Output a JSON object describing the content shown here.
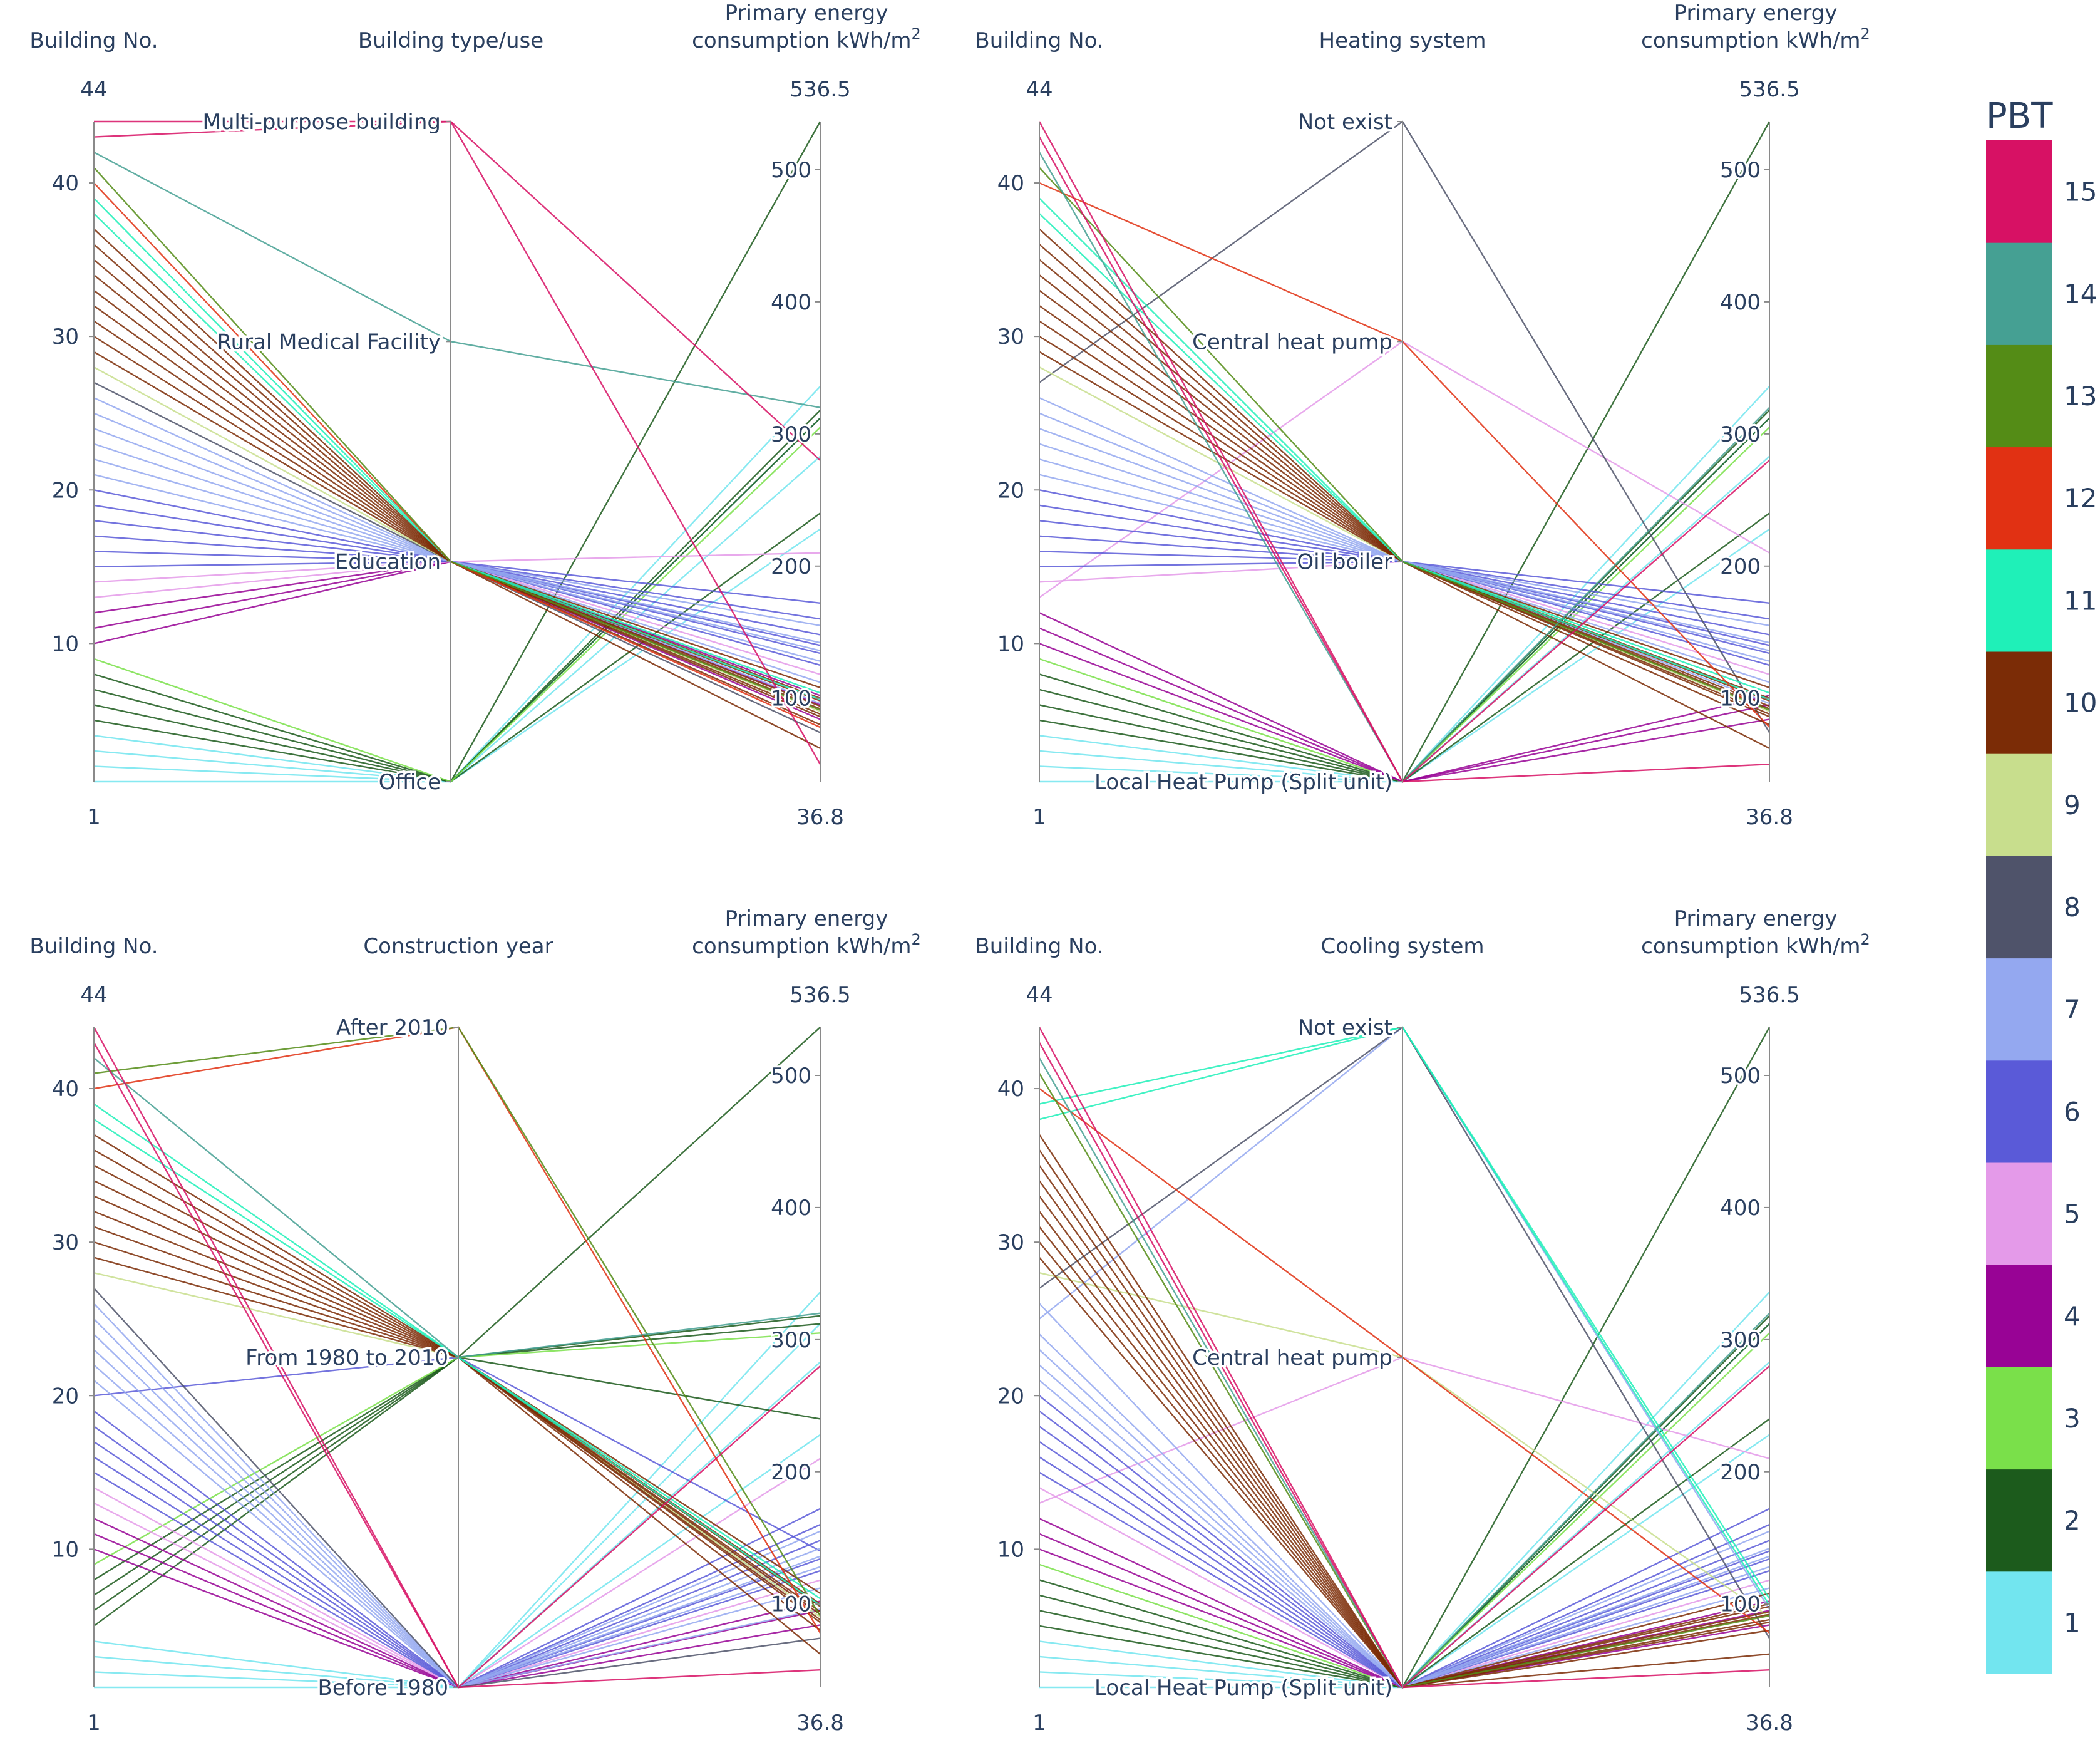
{
  "chart_data": [
    {
      "type": "parallel_coordinates",
      "axes": [
        {
          "name": "Building No.",
          "range": [
            1,
            44
          ]
        },
        {
          "name": "Building type/use",
          "categories": [
            "Office",
            "Education",
            "Rural Medical Facility",
            "Multi-purpose building"
          ]
        },
        {
          "name": "Primary energy consumption kWh/m²",
          "range": [
            36.8,
            536.5
          ],
          "ticks": [
            100,
            200,
            300,
            400,
            500
          ]
        }
      ]
    },
    {
      "type": "parallel_coordinates",
      "axes": [
        {
          "name": "Building No.",
          "range": [
            1,
            44
          ]
        },
        {
          "name": "Heating system",
          "categories": [
            "Local Heat Pump (Split unit)",
            "Oil boiler",
            "Central heat pump",
            "Not exist"
          ]
        },
        {
          "name": "Primary energy consumption kWh/m²",
          "range": [
            36.8,
            536.5
          ],
          "ticks": [
            100,
            200,
            300,
            400,
            500
          ]
        }
      ]
    },
    {
      "type": "parallel_coordinates",
      "axes": [
        {
          "name": "Building No.",
          "range": [
            1,
            44
          ]
        },
        {
          "name": "Construction year",
          "categories": [
            "Before 1980",
            "From 1980 to 2010",
            "After 2010"
          ]
        },
        {
          "name": "Primary energy consumption kWh/m²",
          "range": [
            36.8,
            536.5
          ],
          "ticks": [
            100,
            200,
            300,
            400,
            500
          ]
        }
      ]
    },
    {
      "type": "parallel_coordinates",
      "axes": [
        {
          "name": "Building No.",
          "range": [
            1,
            44
          ]
        },
        {
          "name": "Cooling system",
          "categories": [
            "Local Heat Pump (Split unit)",
            "Central heat pump",
            "Not exist"
          ]
        },
        {
          "name": "Primary energy consumption kWh/m²",
          "range": [
            36.8,
            536.5
          ],
          "ticks": [
            100,
            200,
            300,
            400,
            500
          ]
        }
      ]
    }
  ],
  "labels": {
    "building_no": "Building No.",
    "energy_line1": "Primary energy",
    "energy_line2": "consumption kWh/m",
    "energy_sup": "2",
    "panels": [
      "Building type/use",
      "Heating system",
      "Construction year",
      "Cooling system"
    ],
    "range_top_left": "44",
    "range_bottom_left": "1",
    "range_top_right": "536.5",
    "range_bottom_right": "36.8",
    "left_ticks": [
      "10",
      "20",
      "30",
      "40"
    ],
    "right_ticks": [
      "100",
      "200",
      "300",
      "400",
      "500"
    ]
  },
  "colorbar": {
    "title": "PBT",
    "ticks": [
      "1",
      "2",
      "3",
      "4",
      "5",
      "6",
      "7",
      "8",
      "9",
      "10",
      "11",
      "12",
      "13",
      "14",
      "15"
    ],
    "colors": [
      "#72e5ef",
      "#1c5b1c",
      "#7ae04a",
      "#980395",
      "#e49ae9",
      "#5a5ad8",
      "#94a8f0",
      "#4f536a",
      "#c8de8d",
      "#7b2c06",
      "#1ff0b8",
      "#e13113",
      "#548c16",
      "#45a093",
      "#d71164"
    ]
  },
  "buildings": [
    {
      "id": 1,
      "pbt": 1,
      "use": "Office",
      "heating": "Local Heat Pump (Split unit)",
      "year": "Before 1980",
      "cooling": "Local Heat Pump (Split unit)",
      "energy": 228
    },
    {
      "id": 2,
      "pbt": 1,
      "use": "Office",
      "heating": "Local Heat Pump (Split unit)",
      "year": "Before 1980",
      "cooling": "Local Heat Pump (Split unit)",
      "energy": 312
    },
    {
      "id": 3,
      "pbt": 1,
      "use": "Office",
      "heating": "Local Heat Pump (Split unit)",
      "year": "Before 1980",
      "cooling": "Local Heat Pump (Split unit)",
      "energy": 336
    },
    {
      "id": 4,
      "pbt": 1,
      "use": "Office",
      "heating": "Local Heat Pump (Split unit)",
      "year": "Before 1980",
      "cooling": "Local Heat Pump (Split unit)",
      "energy": 283
    },
    {
      "id": 5,
      "pbt": 2,
      "use": "Office",
      "heating": "Local Heat Pump (Split unit)",
      "year": "From 1980 to 2010",
      "cooling": "Local Heat Pump (Split unit)",
      "energy": 536.5
    },
    {
      "id": 6,
      "pbt": 2,
      "use": "Office",
      "heating": "Local Heat Pump (Split unit)",
      "year": "From 1980 to 2010",
      "cooling": "Local Heat Pump (Split unit)",
      "energy": 312
    },
    {
      "id": 7,
      "pbt": 2,
      "use": "Office",
      "heating": "Local Heat Pump (Split unit)",
      "year": "From 1980 to 2010",
      "cooling": "Local Heat Pump (Split unit)",
      "energy": 240
    },
    {
      "id": 8,
      "pbt": 2,
      "use": "Office",
      "heating": "Local Heat Pump (Split unit)",
      "year": "From 1980 to 2010",
      "cooling": "Local Heat Pump (Split unit)",
      "energy": 318
    },
    {
      "id": 9,
      "pbt": 3,
      "use": "Office",
      "heating": "Local Heat Pump (Split unit)",
      "year": "From 1980 to 2010",
      "cooling": "Local Heat Pump (Split unit)",
      "energy": 305
    },
    {
      "id": 10,
      "pbt": 4,
      "use": "Education",
      "heating": "Local Heat Pump (Split unit)",
      "year": "Before 1980",
      "cooling": "Local Heat Pump (Split unit)",
      "energy": 84
    },
    {
      "id": 11,
      "pbt": 4,
      "use": "Education",
      "heating": "Local Heat Pump (Split unit)",
      "year": "Before 1980",
      "cooling": "Local Heat Pump (Split unit)",
      "energy": 95
    },
    {
      "id": 12,
      "pbt": 4,
      "use": "Education",
      "heating": "Local Heat Pump (Split unit)",
      "year": "Before 1980",
      "cooling": "Local Heat Pump (Split unit)",
      "energy": 102
    },
    {
      "id": 13,
      "pbt": 5,
      "use": "Education",
      "heating": "Central heat pump",
      "year": "Before 1980",
      "cooling": "Central heat pump",
      "energy": 210
    },
    {
      "id": 14,
      "pbt": 5,
      "use": "Education",
      "heating": "Oil boiler",
      "year": "Before 1980",
      "cooling": "Local Heat Pump (Split unit)",
      "energy": 118
    },
    {
      "id": 15,
      "pbt": 6,
      "use": "Education",
      "heating": "Oil boiler",
      "year": "Before 1980",
      "cooling": "Local Heat Pump (Split unit)",
      "energy": 134
    },
    {
      "id": 16,
      "pbt": 6,
      "use": "Education",
      "heating": "Oil boiler",
      "year": "Before 1980",
      "cooling": "Local Heat Pump (Split unit)",
      "energy": 172
    },
    {
      "id": 17,
      "pbt": 6,
      "use": "Education",
      "heating": "Oil boiler",
      "year": "Before 1980",
      "cooling": "Local Heat Pump (Split unit)",
      "energy": 148
    },
    {
      "id": 18,
      "pbt": 6,
      "use": "Education",
      "heating": "Oil boiler",
      "year": "Before 1980",
      "cooling": "Local Heat Pump (Split unit)",
      "energy": 160
    },
    {
      "id": 19,
      "pbt": 6,
      "use": "Education",
      "heating": "Oil boiler",
      "year": "Before 1980",
      "cooling": "Local Heat Pump (Split unit)",
      "energy": 125
    },
    {
      "id": 20,
      "pbt": 6,
      "use": "Education",
      "heating": "Oil boiler",
      "year": "From 1980 to 2010",
      "cooling": "Local Heat Pump (Split unit)",
      "energy": 140
    },
    {
      "id": 21,
      "pbt": 7,
      "use": "Education",
      "heating": "Oil boiler",
      "year": "Before 1980",
      "cooling": "Local Heat Pump (Split unit)",
      "energy": 142
    },
    {
      "id": 22,
      "pbt": 7,
      "use": "Education",
      "heating": "Oil boiler",
      "year": "Before 1980",
      "cooling": "Local Heat Pump (Split unit)",
      "energy": 112
    },
    {
      "id": 23,
      "pbt": 7,
      "use": "Education",
      "heating": "Oil boiler",
      "year": "Before 1980",
      "cooling": "Local Heat Pump (Split unit)",
      "energy": 128
    },
    {
      "id": 24,
      "pbt": 7,
      "use": "Education",
      "heating": "Oil boiler",
      "year": "Before 1980",
      "cooling": "Local Heat Pump (Split unit)",
      "energy": 136
    },
    {
      "id": 25,
      "pbt": 7,
      "use": "Education",
      "heating": "Oil boiler",
      "year": "Before 1980",
      "cooling": "Not exist",
      "energy": 96
    },
    {
      "id": 26,
      "pbt": 7,
      "use": "Education",
      "heating": "Oil boiler",
      "year": "Before 1980",
      "cooling": "Local Heat Pump (Split unit)",
      "energy": 155
    },
    {
      "id": 27,
      "pbt": 8,
      "use": "Education",
      "heating": "Not exist",
      "year": "Before 1980",
      "cooling": "Not exist",
      "energy": 74
    },
    {
      "id": 28,
      "pbt": 9,
      "use": "Education",
      "heating": "Oil boiler",
      "year": "From 1980 to 2010",
      "cooling": "Central heat pump",
      "energy": 90
    },
    {
      "id": 29,
      "pbt": 10,
      "use": "Education",
      "heating": "Oil boiler",
      "year": "From 1980 to 2010",
      "cooling": "Local Heat Pump (Split unit)",
      "energy": 88
    },
    {
      "id": 30,
      "pbt": 10,
      "use": "Education",
      "heating": "Oil boiler",
      "year": "From 1980 to 2010",
      "cooling": "Local Heat Pump (Split unit)",
      "energy": 92
    },
    {
      "id": 31,
      "pbt": 10,
      "use": "Education",
      "heating": "Oil boiler",
      "year": "From 1980 to 2010",
      "cooling": "Local Heat Pump (Split unit)",
      "energy": 98
    },
    {
      "id": 32,
      "pbt": 10,
      "use": "Education",
      "heating": "Oil boiler",
      "year": "From 1980 to 2010",
      "cooling": "Local Heat Pump (Split unit)",
      "energy": 86
    },
    {
      "id": 33,
      "pbt": 10,
      "use": "Education",
      "heating": "Oil boiler",
      "year": "From 1980 to 2010",
      "cooling": "Local Heat Pump (Split unit)",
      "energy": 94
    },
    {
      "id": 34,
      "pbt": 10,
      "use": "Education",
      "heating": "Oil boiler",
      "year": "From 1980 to 2010",
      "cooling": "Local Heat Pump (Split unit)",
      "energy": 100
    },
    {
      "id": 35,
      "pbt": 10,
      "use": "Education",
      "heating": "Oil boiler",
      "year": "From 1980 to 2010",
      "cooling": "Local Heat Pump (Split unit)",
      "energy": 80
    },
    {
      "id": 36,
      "pbt": 10,
      "use": "Education",
      "heating": "Oil boiler",
      "year": "From 1980 to 2010",
      "cooling": "Local Heat Pump (Split unit)",
      "energy": 108
    },
    {
      "id": 37,
      "pbt": 10,
      "use": "Education",
      "heating": "Oil boiler",
      "year": "From 1980 to 2010",
      "cooling": "Local Heat Pump (Split unit)",
      "energy": 62
    },
    {
      "id": 38,
      "pbt": 11,
      "use": "Education",
      "heating": "Oil boiler",
      "year": "From 1980 to 2010",
      "cooling": "Not exist",
      "energy": 104
    },
    {
      "id": 39,
      "pbt": 11,
      "use": "Education",
      "heating": "Oil boiler",
      "year": "From 1980 to 2010",
      "cooling": "Not exist",
      "energy": 99
    },
    {
      "id": 40,
      "pbt": 12,
      "use": "Education",
      "heating": "Central heat pump",
      "year": "After 2010",
      "cooling": "Central heat pump",
      "energy": 78
    },
    {
      "id": 41,
      "pbt": 13,
      "use": "Education",
      "heating": "Oil boiler",
      "year": "After 2010",
      "cooling": "Local Heat Pump (Split unit)",
      "energy": 91
    },
    {
      "id": 42,
      "pbt": 14,
      "use": "Rural Medical Facility",
      "heating": "Local Heat Pump (Split unit)",
      "year": "From 1980 to 2010",
      "cooling": "Local Heat Pump (Split unit)",
      "energy": 320
    },
    {
      "id": 43,
      "pbt": 15,
      "use": "Multi-purpose building",
      "heating": "Local Heat Pump (Split unit)",
      "year": "Before 1980",
      "cooling": "Local Heat Pump (Split unit)",
      "energy": 280
    },
    {
      "id": 44,
      "pbt": 15,
      "use": "Multi-purpose building",
      "heating": "Local Heat Pump (Split unit)",
      "year": "Before 1980",
      "cooling": "Local Heat Pump (Split unit)",
      "energy": 50
    }
  ]
}
